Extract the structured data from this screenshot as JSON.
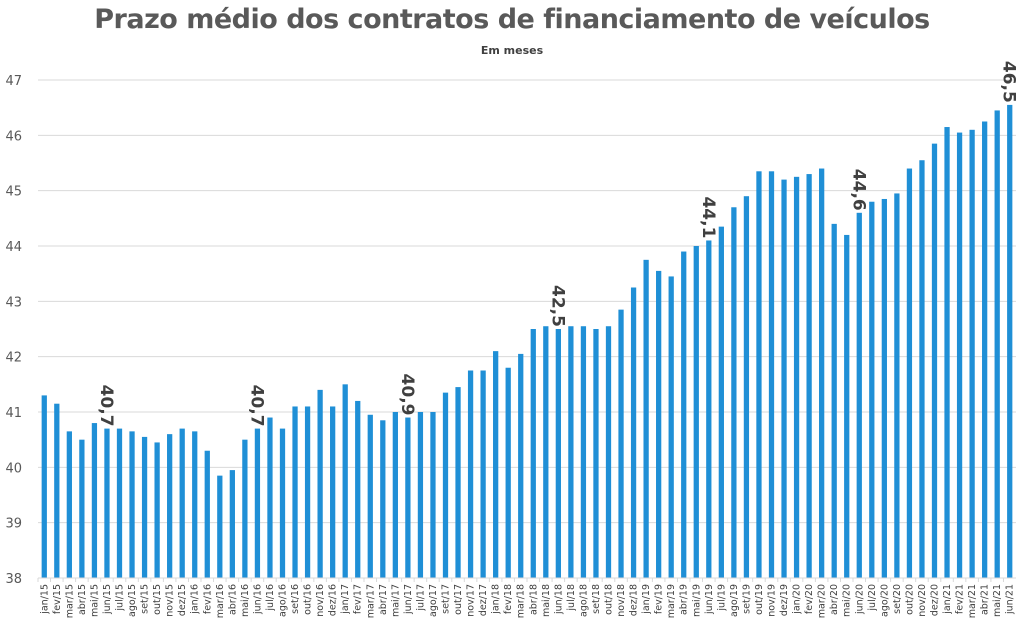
{
  "chart_data": {
    "type": "bar",
    "title": "Prazo médio dos contratos de financiamento de veículos",
    "subtitle": "Em meses",
    "xlabel": "",
    "ylabel": "",
    "ylim": [
      38,
      47
    ],
    "yticks": [
      38,
      39,
      40,
      41,
      42,
      43,
      44,
      45,
      46,
      47
    ],
    "grid": true,
    "legend": "none",
    "bar_color": "#1f8fd6",
    "categories": [
      "jan/15",
      "fev/15",
      "mar/15",
      "abr/15",
      "mai/15",
      "jun/15",
      "jul/15",
      "ago/15",
      "set/15",
      "out/15",
      "nov/15",
      "dez/15",
      "jan/16",
      "fev/16",
      "mar/16",
      "abr/16",
      "mai/16",
      "jun/16",
      "jul/16",
      "ago/16",
      "set/16",
      "out/16",
      "nov/16",
      "dez/16",
      "jan/17",
      "fev/17",
      "mar/17",
      "abr/17",
      "mai/17",
      "jun/17",
      "jul/17",
      "ago/17",
      "set/17",
      "out/17",
      "nov/17",
      "dez/17",
      "jan/18",
      "fev/18",
      "mar/18",
      "abr/18",
      "mai/18",
      "jun/18",
      "jul/18",
      "ago/18",
      "set/18",
      "out/18",
      "nov/18",
      "dez/18",
      "jan/19",
      "fev/19",
      "mar/19",
      "abr/19",
      "mai/19",
      "jun/19",
      "jul/19",
      "ago/19",
      "set/19",
      "out/19",
      "nov/19",
      "dez/19",
      "jan/20",
      "fev/20",
      "mar/20",
      "abr/20",
      "mai/20",
      "jun/20",
      "jul/20",
      "ago/20",
      "set/20",
      "out/20",
      "nov/20",
      "dez/20",
      "jan/21",
      "fev/21",
      "mar/21",
      "abr/21",
      "mai/21",
      "jun/21"
    ],
    "values": [
      41.3,
      41.15,
      40.65,
      40.5,
      40.8,
      40.7,
      40.7,
      40.65,
      40.55,
      40.45,
      40.6,
      40.7,
      40.65,
      40.3,
      39.85,
      39.95,
      40.5,
      40.7,
      40.9,
      40.7,
      41.1,
      41.1,
      41.4,
      41.1,
      41.5,
      41.2,
      40.95,
      40.85,
      41.0,
      40.9,
      41.0,
      41.0,
      41.35,
      41.45,
      41.75,
      41.75,
      42.1,
      41.8,
      42.05,
      42.5,
      42.55,
      42.5,
      42.55,
      42.55,
      42.5,
      42.55,
      42.85,
      43.25,
      43.75,
      43.55,
      43.45,
      43.9,
      44.0,
      44.1,
      44.35,
      44.7,
      44.9,
      45.35,
      45.35,
      45.2,
      45.25,
      45.3,
      45.4,
      44.4,
      44.2,
      44.6,
      44.8,
      44.85,
      44.95,
      45.4,
      45.55,
      45.85,
      46.15,
      46.05,
      46.1,
      46.25,
      46.45,
      46.55
    ],
    "annotations": [
      {
        "category": "jun/15",
        "label": "40,7"
      },
      {
        "category": "jun/16",
        "label": "40,7"
      },
      {
        "category": "jun/17",
        "label": "40,9"
      },
      {
        "category": "jun/18",
        "label": "42,5"
      },
      {
        "category": "jun/19",
        "label": "44,1"
      },
      {
        "category": "jun/20",
        "label": "44,6"
      },
      {
        "category": "jun/21",
        "label": "46,5"
      }
    ]
  }
}
